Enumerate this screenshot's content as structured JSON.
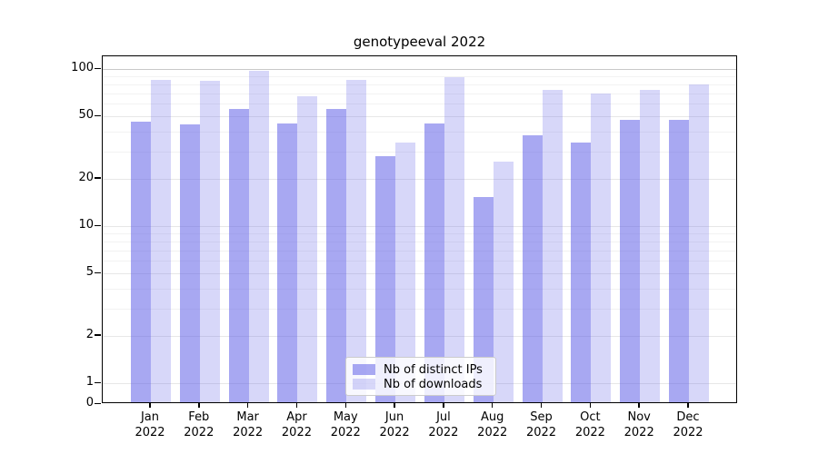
{
  "chart_data": {
    "type": "bar",
    "title": "genotypeeval 2022",
    "categories": [
      "Jan",
      "Feb",
      "Mar",
      "Apr",
      "May",
      "Jun",
      "Jul",
      "Aug",
      "Sep",
      "Oct",
      "Nov",
      "Dec"
    ],
    "year": "2022",
    "series": [
      {
        "name": "Nb of distinct IPs",
        "color": "#6060e8",
        "alpha": 0.55,
        "values": [
          45,
          43,
          54,
          44,
          54,
          27,
          44,
          15,
          37,
          33,
          46,
          46
        ]
      },
      {
        "name": "Nb of downloads",
        "color": "#6060e8",
        "alpha": 0.25,
        "values": [
          83,
          82,
          95,
          65,
          83,
          33,
          87,
          25,
          72,
          68,
          72,
          78
        ]
      }
    ],
    "yticks": [
      0,
      1,
      2,
      5,
      10,
      20,
      50,
      100
    ],
    "minor_gridlines": [
      3,
      4,
      6,
      7,
      8,
      9,
      30,
      40,
      60,
      70,
      80,
      90
    ],
    "scale": "symlog",
    "ylim": [
      0,
      120
    ],
    "xlabel": "",
    "ylabel": "",
    "grid": true,
    "legend_position": "lower center"
  }
}
